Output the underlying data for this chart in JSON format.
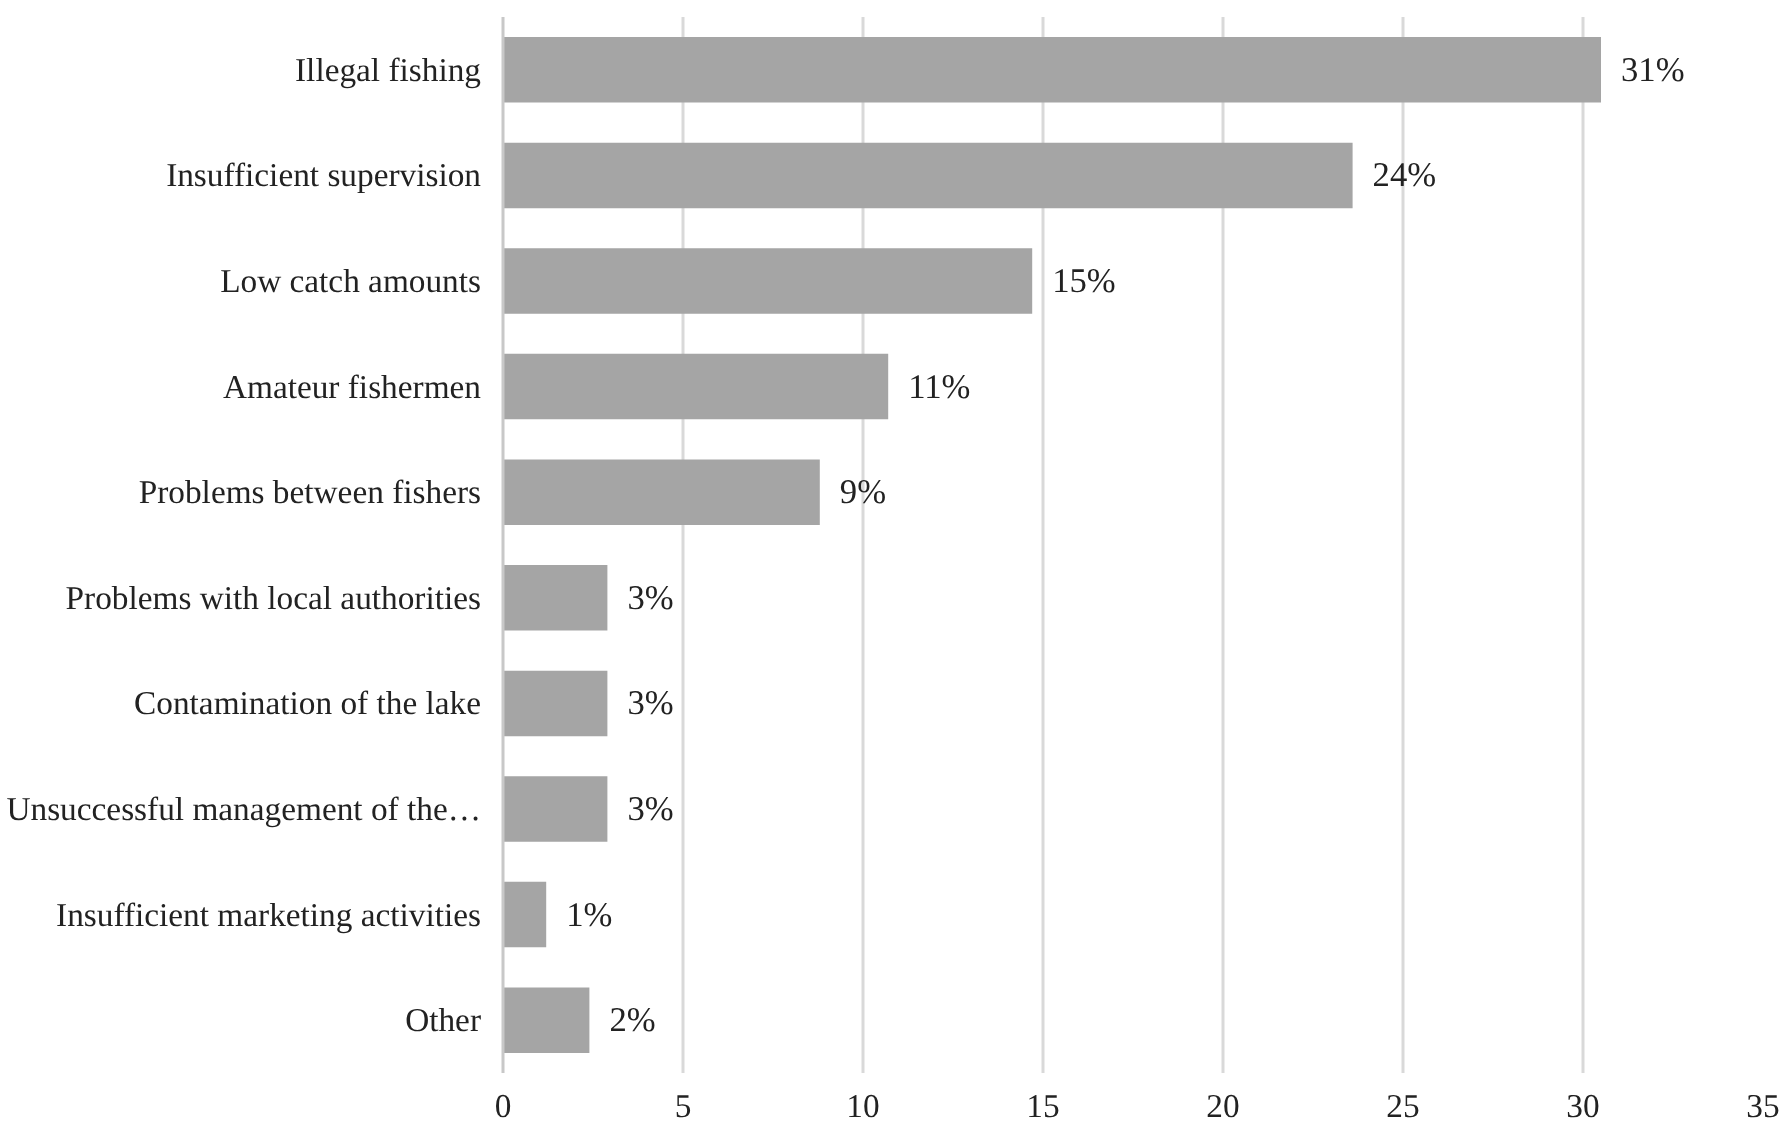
{
  "chart_data": {
    "type": "bar",
    "orientation": "horizontal",
    "categories": [
      "Illegal fishing",
      "Insufficient supervision",
      "Low catch amounts",
      "Amateur fishermen",
      "Problems between fishers",
      "Problems with local authorities",
      "Contamination of the lake",
      "Unsuccessful management of the…",
      "Insufficient marketing activities",
      "Other"
    ],
    "values": [
      30.5,
      23.6,
      14.7,
      10.7,
      8.8,
      2.9,
      2.9,
      2.9,
      1.2,
      2.4
    ],
    "value_labels": [
      "31%",
      "24%",
      "15%",
      "11%",
      "9%",
      "3%",
      "3%",
      "3%",
      "1%",
      "2%"
    ],
    "color": "#a5a5a5",
    "xlim": [
      0,
      35
    ],
    "xticks": [
      0,
      5,
      10,
      15,
      20,
      25,
      30,
      35
    ],
    "grid": "x"
  }
}
